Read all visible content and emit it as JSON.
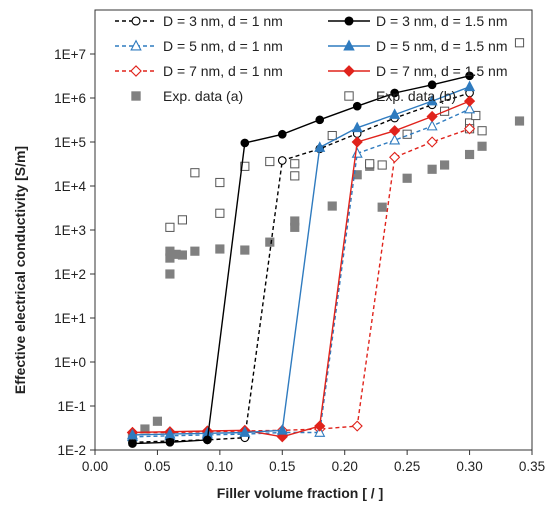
{
  "chart_data": {
    "type": "scatter",
    "title": "",
    "xlabel": "Filler volume fraction [ / ]",
    "ylabel": "Effective electrical conductivity [S/m]",
    "xlim": [
      0,
      0.35
    ],
    "ylim": [
      0.01,
      100000000
    ],
    "yscale": "log",
    "xticks": [
      "0.00",
      "0.05",
      "0.10",
      "0.15",
      "0.20",
      "0.25",
      "0.30",
      "0.35"
    ],
    "yticks": [
      "1E-2",
      "1E-1",
      "1E+0",
      "1E+1",
      "1E+2",
      "1E+3",
      "1E+4",
      "1E+5",
      "1E+6",
      "1E+7"
    ],
    "grid": false,
    "legend_position": "top",
    "series": [
      {
        "name": "D = 3 nm, d = 1 nm",
        "color": "#000000",
        "line": "dashed",
        "marker": "circle",
        "filled": false,
        "x": [
          0.03,
          0.06,
          0.09,
          0.12,
          0.15,
          0.18,
          0.21,
          0.24,
          0.27,
          0.3
        ],
        "y": [
          0.015,
          0.016,
          0.017,
          0.019,
          38000,
          70000,
          155000,
          350000,
          700000,
          1300000
        ]
      },
      {
        "name": "D = 3 nm, d = 1.5 nm",
        "color": "#000000",
        "line": "solid",
        "marker": "circle",
        "filled": true,
        "x": [
          0.03,
          0.06,
          0.09,
          0.12,
          0.15,
          0.18,
          0.21,
          0.24,
          0.27,
          0.3
        ],
        "y": [
          0.014,
          0.015,
          0.017,
          95000,
          150000,
          320000,
          650000,
          1300000,
          2000000,
          3200000
        ]
      },
      {
        "name": "D = 5 nm, d = 1 nm",
        "color": "#2f7bbf",
        "line": "dashed",
        "marker": "triangle",
        "filled": false,
        "x": [
          0.03,
          0.06,
          0.09,
          0.12,
          0.15,
          0.18,
          0.21,
          0.24,
          0.27,
          0.3
        ],
        "y": [
          0.02,
          0.021,
          0.022,
          0.023,
          0.025,
          0.025,
          55000,
          110000,
          230000,
          560000
        ]
      },
      {
        "name": "D = 5 nm, d = 1.5 nm",
        "color": "#2f7bbf",
        "line": "solid",
        "marker": "triangle",
        "filled": true,
        "x": [
          0.03,
          0.06,
          0.09,
          0.12,
          0.15,
          0.18,
          0.21,
          0.24,
          0.27,
          0.3
        ],
        "y": [
          0.022,
          0.023,
          0.024,
          0.025,
          0.028,
          75000,
          210000,
          420000,
          850000,
          1800000
        ]
      },
      {
        "name": "D = 7 nm, d = 1 nm",
        "color": "#e0231c",
        "line": "dashed",
        "marker": "diamond",
        "filled": false,
        "x": [
          0.03,
          0.06,
          0.09,
          0.12,
          0.15,
          0.18,
          0.21,
          0.24,
          0.27,
          0.3
        ],
        "y": [
          0.025,
          0.025,
          0.026,
          0.027,
          0.028,
          0.03,
          0.035,
          45000,
          100000,
          200000
        ]
      },
      {
        "name": "D = 7 nm, d = 1.5 nm",
        "color": "#e0231c",
        "line": "solid",
        "marker": "diamond",
        "filled": true,
        "x": [
          0.03,
          0.06,
          0.09,
          0.12,
          0.15,
          0.18,
          0.21,
          0.24,
          0.27,
          0.3
        ],
        "y": [
          0.025,
          0.026,
          0.027,
          0.028,
          0.02,
          0.035,
          100000,
          180000,
          380000,
          850000
        ]
      },
      {
        "name": "Exp. data (a)",
        "color": "#808080",
        "line": "none",
        "marker": "square",
        "filled": true,
        "x": [
          0.03,
          0.04,
          0.05,
          0.06,
          0.06,
          0.06,
          0.065,
          0.07,
          0.08,
          0.1,
          0.12,
          0.14,
          0.16,
          0.16,
          0.19,
          0.21,
          0.22,
          0.23,
          0.25,
          0.27,
          0.28,
          0.3,
          0.31,
          0.34
        ],
        "y": [
          0.02,
          0.03,
          0.045,
          100,
          230,
          330,
          280,
          270,
          330,
          370,
          350,
          530,
          1150,
          1600,
          3500,
          18000,
          28000,
          3300,
          15000,
          24000,
          30000,
          52000,
          80000,
          300000
        ]
      },
      {
        "name": "Exp. data (b)",
        "color": "#555555",
        "line": "none",
        "marker": "square",
        "filled": false,
        "x": [
          0.06,
          0.07,
          0.08,
          0.1,
          0.1,
          0.12,
          0.14,
          0.16,
          0.16,
          0.19,
          0.22,
          0.23,
          0.25,
          0.28,
          0.3,
          0.3,
          0.305,
          0.31,
          0.34
        ],
        "y": [
          1150,
          1700,
          20000,
          2400,
          12000,
          28000,
          36000,
          17000,
          32000,
          140000,
          32000,
          30000,
          150000,
          500000,
          270000,
          200000,
          400000,
          180000,
          18000000
        ]
      }
    ]
  }
}
